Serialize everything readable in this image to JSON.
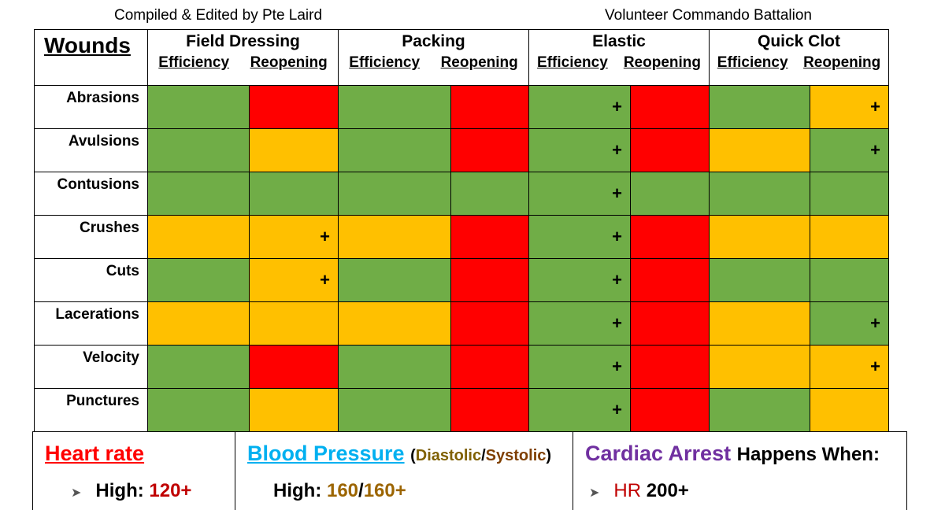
{
  "header": {
    "left": "Compiled & Edited by Pte Laird",
    "right": "Volunteer Commando Battalion"
  },
  "table": {
    "corner_label": "Wounds",
    "groups": [
      {
        "name": "Field Dressing",
        "sub": [
          "Efficiency",
          "Reopening"
        ]
      },
      {
        "name": "Packing",
        "sub": [
          "Efficiency",
          "Reopening"
        ]
      },
      {
        "name": "Elastic",
        "sub": [
          "Efficiency",
          "Reopening"
        ]
      },
      {
        "name": "Quick Clot",
        "sub": [
          "Efficiency",
          "Reopening"
        ]
      }
    ],
    "colors": {
      "G": "#70ad47",
      "R": "#ff0000",
      "Y": "#ffc000"
    },
    "plus_symbol": "+",
    "rows": [
      {
        "label": "Abrasions",
        "cells": [
          {
            "c": "G"
          },
          {
            "c": "R"
          },
          {
            "c": "G"
          },
          {
            "c": "R"
          },
          {
            "c": "G",
            "plus": true
          },
          {
            "c": "R"
          },
          {
            "c": "G"
          },
          {
            "c": "Y",
            "plus": true
          }
        ]
      },
      {
        "label": "Avulsions",
        "cells": [
          {
            "c": "G"
          },
          {
            "c": "Y"
          },
          {
            "c": "G"
          },
          {
            "c": "R"
          },
          {
            "c": "G",
            "plus": true
          },
          {
            "c": "R"
          },
          {
            "c": "Y"
          },
          {
            "c": "G",
            "plus": true
          }
        ]
      },
      {
        "label": "Contusions",
        "cells": [
          {
            "c": "G"
          },
          {
            "c": "G"
          },
          {
            "c": "G"
          },
          {
            "c": "G"
          },
          {
            "c": "G",
            "plus": true
          },
          {
            "c": "G"
          },
          {
            "c": "G"
          },
          {
            "c": "G"
          }
        ]
      },
      {
        "label": "Crushes",
        "cells": [
          {
            "c": "Y"
          },
          {
            "c": "Y",
            "plus": true
          },
          {
            "c": "Y"
          },
          {
            "c": "R"
          },
          {
            "c": "G",
            "plus": true
          },
          {
            "c": "R"
          },
          {
            "c": "Y"
          },
          {
            "c": "Y"
          }
        ]
      },
      {
        "label": "Cuts",
        "cells": [
          {
            "c": "G"
          },
          {
            "c": "Y",
            "plus": true
          },
          {
            "c": "G"
          },
          {
            "c": "R"
          },
          {
            "c": "G",
            "plus": true
          },
          {
            "c": "R"
          },
          {
            "c": "G"
          },
          {
            "c": "G"
          }
        ]
      },
      {
        "label": "Lacerations",
        "cells": [
          {
            "c": "Y"
          },
          {
            "c": "Y"
          },
          {
            "c": "Y"
          },
          {
            "c": "R"
          },
          {
            "c": "G",
            "plus": true
          },
          {
            "c": "R"
          },
          {
            "c": "Y"
          },
          {
            "c": "G",
            "plus": true
          }
        ]
      },
      {
        "label": "Velocity",
        "cells": [
          {
            "c": "G"
          },
          {
            "c": "R"
          },
          {
            "c": "G"
          },
          {
            "c": "R"
          },
          {
            "c": "G",
            "plus": true
          },
          {
            "c": "R"
          },
          {
            "c": "Y"
          },
          {
            "c": "Y",
            "plus": true
          }
        ]
      },
      {
        "label": "Punctures",
        "cells": [
          {
            "c": "G"
          },
          {
            "c": "Y"
          },
          {
            "c": "G"
          },
          {
            "c": "R"
          },
          {
            "c": "G",
            "plus": true
          },
          {
            "c": "R"
          },
          {
            "c": "G"
          },
          {
            "c": "Y"
          }
        ]
      }
    ]
  },
  "legend": {
    "heart_rate": {
      "title": "Heart rate",
      "line_label": "High:",
      "line_value": "120+"
    },
    "blood_pressure": {
      "title": "Blood Pressure",
      "open": "(",
      "diastolic": "Diastolic",
      "slash": "/",
      "systolic": "Systolic",
      "close": ")",
      "line_label": "High:",
      "line_dia": "160",
      "line_slash": "/",
      "line_sys": "160+"
    },
    "cardiac_arrest": {
      "title": "Cardiac Arrest",
      "title_tail": "Happens When:",
      "line_label": "HR",
      "line_value": "200+"
    }
  }
}
